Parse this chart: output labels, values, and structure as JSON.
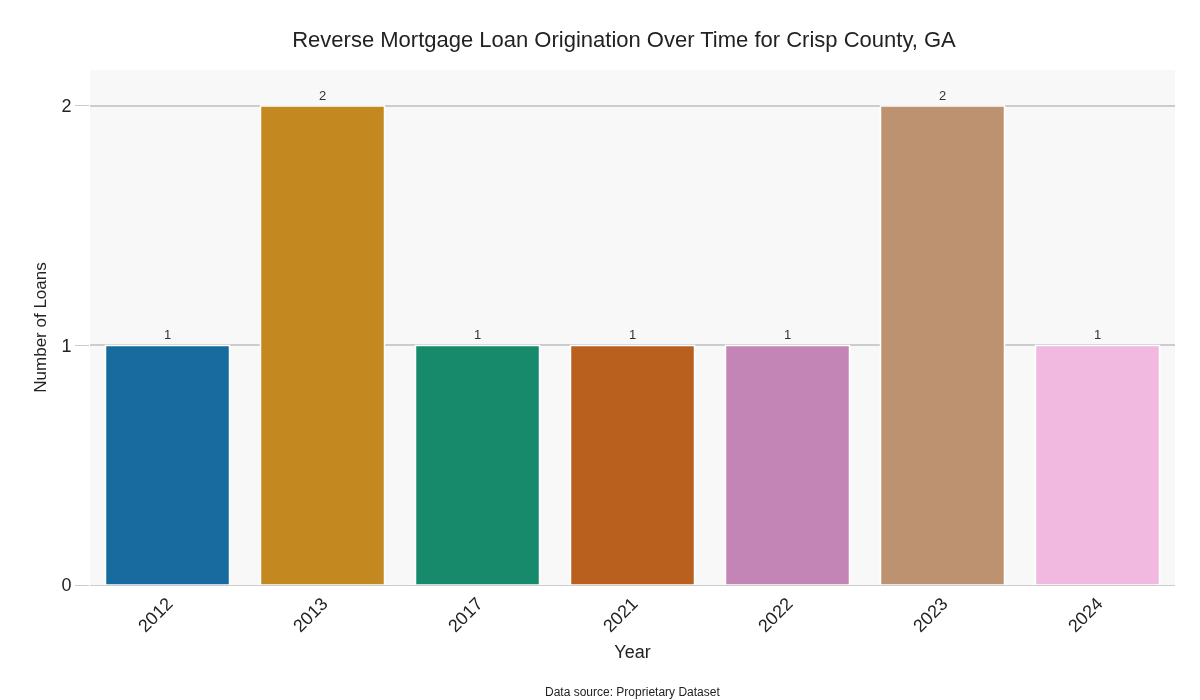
{
  "chart_data": {
    "type": "bar",
    "title": "Reverse Mortgage Loan Origination Over Time for Crisp County, GA",
    "xlabel": "Year",
    "ylabel": "Number of Loans",
    "categories": [
      "2012",
      "2013",
      "2017",
      "2021",
      "2022",
      "2023",
      "2024"
    ],
    "values": [
      1,
      2,
      1,
      1,
      1,
      2,
      1
    ],
    "colors": [
      "#176b9e",
      "#c38820",
      "#168a6b",
      "#b9601f",
      "#c384b6",
      "#bd9270",
      "#f1b8e0"
    ],
    "ylim": [
      0,
      2.15
    ],
    "yticks": [
      0,
      1,
      2
    ],
    "grid": "y",
    "data_labels": true,
    "annotations": [
      "Data source: Proprietary Dataset"
    ]
  }
}
